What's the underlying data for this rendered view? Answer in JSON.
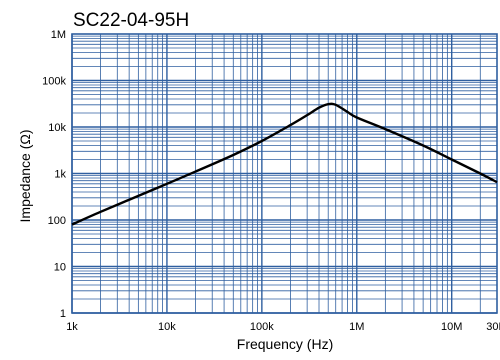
{
  "chart_data": {
    "type": "line",
    "title": "SC22-04-95H",
    "xlabel": "Frequency (Hz)",
    "ylabel": "Impedance (Ω)",
    "x_scale": "log",
    "y_scale": "log",
    "xlim": [
      1000,
      30000000
    ],
    "ylim": [
      1,
      1000000
    ],
    "grid": true,
    "x_ticks": [
      {
        "value": 1000,
        "label": "1k"
      },
      {
        "value": 10000,
        "label": "10k"
      },
      {
        "value": 100000,
        "label": "100k"
      },
      {
        "value": 1000000,
        "label": "1M"
      },
      {
        "value": 10000000,
        "label": "10M"
      },
      {
        "value": 30000000,
        "label": "30M"
      }
    ],
    "y_ticks": [
      {
        "value": 1,
        "label": "1"
      },
      {
        "value": 10,
        "label": "10"
      },
      {
        "value": 100,
        "label": "100"
      },
      {
        "value": 1000,
        "label": "1k"
      },
      {
        "value": 10000,
        "label": "10k"
      },
      {
        "value": 100000,
        "label": "100k"
      },
      {
        "value": 1000000,
        "label": "1M"
      }
    ],
    "series": [
      {
        "color": "#000000",
        "x": [
          1000,
          2000,
          5000,
          10000,
          20000,
          50000,
          100000,
          200000,
          300000,
          400000,
          500000,
          600000,
          800000,
          1000000,
          2000000,
          5000000,
          10000000,
          20000000,
          30000000
        ],
        "y": [
          80,
          150,
          330,
          600,
          1100,
          2500,
          5000,
          11000,
          18000,
          26000,
          31000,
          30000,
          21000,
          16000,
          9000,
          4000,
          2000,
          1000,
          650
        ]
      }
    ],
    "colors": {
      "grid": "#2f5fa0",
      "frame": "#2f5fa0",
      "line": "#000000"
    }
  }
}
